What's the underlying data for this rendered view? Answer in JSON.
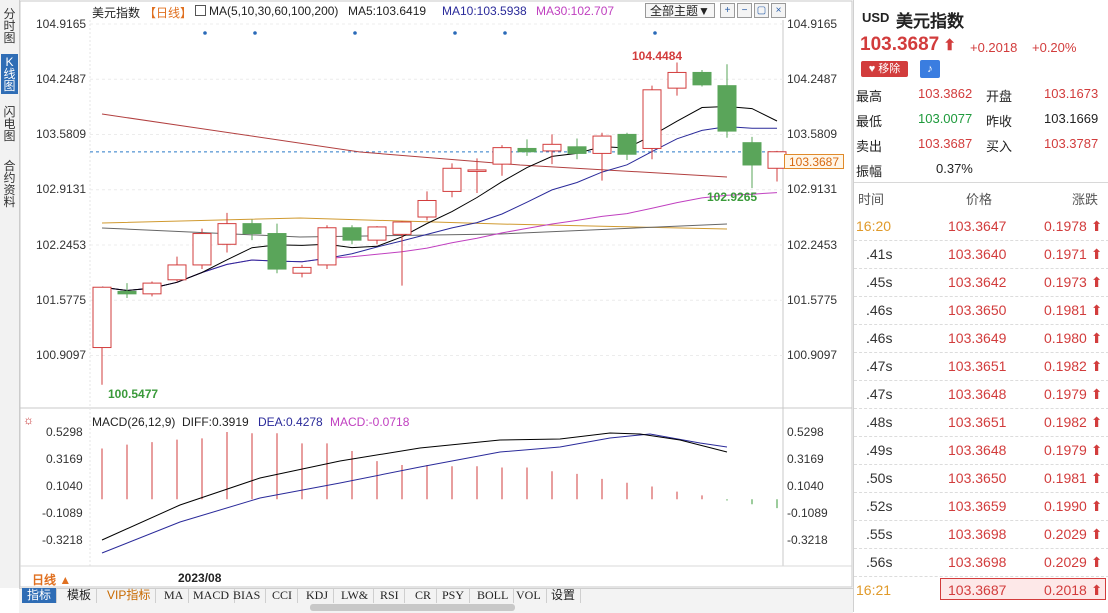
{
  "left_tabs": [
    {
      "label": "分时图",
      "active": false
    },
    {
      "label": "K线图",
      "active": true
    },
    {
      "label": "闪电图",
      "active": false
    },
    {
      "label": "合约资料",
      "active": false
    }
  ],
  "header": {
    "title": "美元指数",
    "period": "【日线】",
    "ma_params": "MA(5,10,30,60,100,200)",
    "ma5": "MA5:103.6419",
    "ma10": "MA10:103.5938",
    "ma30": "MA30:102.707",
    "theme_select": "全部主题▼"
  },
  "price_axis": [
    "104.9165",
    "104.2487",
    "103.5809",
    "102.9131",
    "102.2453",
    "101.5775",
    "100.9097"
  ],
  "current_price_tag": "103.3687",
  "annotations": {
    "high": "104.4484",
    "low": "100.5477",
    "recent_low": "102.9265"
  },
  "macd": {
    "label": "MACD(26,12,9)",
    "diff": "DIFF:0.3919",
    "dea": "DEA:0.4278",
    "macd": "MACD:-0.0718",
    "axis": [
      "0.5298",
      "0.3169",
      "0.1040",
      "-0.1089",
      "-0.3218"
    ]
  },
  "period_button": "日线",
  "date_label": "2023/08",
  "bottom_tabs": [
    "指标",
    "模板",
    "VIP指标",
    "MA",
    "MACD",
    "BIAS",
    "CCI",
    "KDJ",
    "LW&",
    "RSI",
    "CR",
    "PSY",
    "BOLL",
    "VOL",
    "设置"
  ],
  "quote": {
    "code": "USD",
    "name": "美元指数",
    "price": "103.3687",
    "change": "+0.2018",
    "change_pct": "+0.20%",
    "remove_label": "移除",
    "stats": [
      {
        "l1": "最高",
        "v1": "103.3862",
        "l2": "开盘",
        "v2": "103.1673"
      },
      {
        "l1": "最低",
        "v1": "103.0077",
        "l2": "昨收",
        "v2": "103.1669"
      },
      {
        "l1": "卖出",
        "v1": "103.3687",
        "l2": "买入",
        "v2": "103.3787"
      }
    ],
    "amplitude_label": "振幅",
    "amplitude": "0.37%"
  },
  "ticks_header": {
    "time": "时间",
    "price": "价格",
    "change": "涨跌"
  },
  "ticks": [
    {
      "time": "16:20",
      "price": "103.3647",
      "change": "0.1978"
    },
    {
      "time": ".41s",
      "price": "103.3640",
      "change": "0.1971"
    },
    {
      "time": ".45s",
      "price": "103.3642",
      "change": "0.1973"
    },
    {
      "time": ".46s",
      "price": "103.3650",
      "change": "0.1981"
    },
    {
      "time": ".46s",
      "price": "103.3649",
      "change": "0.1980"
    },
    {
      "time": ".47s",
      "price": "103.3651",
      "change": "0.1982"
    },
    {
      "time": ".47s",
      "price": "103.3648",
      "change": "0.1979"
    },
    {
      "time": ".48s",
      "price": "103.3651",
      "change": "0.1982"
    },
    {
      "time": ".49s",
      "price": "103.3648",
      "change": "0.1979"
    },
    {
      "time": ".50s",
      "price": "103.3650",
      "change": "0.1981"
    },
    {
      "time": ".52s",
      "price": "103.3659",
      "change": "0.1990"
    },
    {
      "time": ".55s",
      "price": "103.3698",
      "change": "0.2029"
    },
    {
      "time": ".56s",
      "price": "103.3698",
      "change": "0.2029"
    },
    {
      "time": "16:21",
      "price": "103.3687",
      "change": "0.2018"
    }
  ],
  "colors": {
    "up": "#d23c3c",
    "down": "#5aa55a",
    "ma5": "#000000",
    "ma10": "#2a2a9a",
    "ma30": "#c040c0",
    "accent": "#2f6db5"
  },
  "chart_data": {
    "type": "candlestick",
    "candles": [
      {
        "o": 101.0,
        "c": 101.73,
        "h": 101.73,
        "l": 100.55
      },
      {
        "o": 101.68,
        "c": 101.65,
        "h": 101.78,
        "l": 101.6
      },
      {
        "o": 101.65,
        "c": 101.78,
        "h": 101.8,
        "l": 101.62
      },
      {
        "o": 101.82,
        "c": 102.0,
        "h": 102.1,
        "l": 101.8
      },
      {
        "o": 102.0,
        "c": 102.38,
        "h": 102.44,
        "l": 101.95
      },
      {
        "o": 102.25,
        "c": 102.5,
        "h": 102.63,
        "l": 102.15
      },
      {
        "o": 102.5,
        "c": 102.38,
        "h": 102.55,
        "l": 102.3
      },
      {
        "o": 102.38,
        "c": 101.95,
        "h": 102.5,
        "l": 101.9
      },
      {
        "o": 101.9,
        "c": 101.97,
        "h": 102.0,
        "l": 101.85
      },
      {
        "o": 102.0,
        "c": 102.45,
        "h": 102.48,
        "l": 101.95
      },
      {
        "o": 102.45,
        "c": 102.3,
        "h": 102.48,
        "l": 102.25
      },
      {
        "o": 102.3,
        "c": 102.46,
        "h": 102.47,
        "l": 102.25
      },
      {
        "o": 102.37,
        "c": 102.52,
        "h": 102.53,
        "l": 101.75
      },
      {
        "o": 102.58,
        "c": 102.78,
        "h": 102.89,
        "l": 102.54
      },
      {
        "o": 102.89,
        "c": 103.17,
        "h": 103.23,
        "l": 102.82
      },
      {
        "o": 103.14,
        "c": 103.15,
        "h": 103.29,
        "l": 102.87
      },
      {
        "o": 103.22,
        "c": 103.42,
        "h": 103.45,
        "l": 103.08
      },
      {
        "o": 103.41,
        "c": 103.37,
        "h": 103.52,
        "l": 103.32
      },
      {
        "o": 103.38,
        "c": 103.46,
        "h": 103.58,
        "l": 103.22
      },
      {
        "o": 103.43,
        "c": 103.35,
        "h": 103.53,
        "l": 103.28
      },
      {
        "o": 103.35,
        "c": 103.56,
        "h": 103.6,
        "l": 103.02
      },
      {
        "o": 103.58,
        "c": 103.34,
        "h": 103.6,
        "l": 103.27
      },
      {
        "o": 103.41,
        "c": 104.12,
        "h": 104.17,
        "l": 103.28
      },
      {
        "o": 104.14,
        "c": 104.33,
        "h": 104.45,
        "l": 104.05
      },
      {
        "o": 104.33,
        "c": 104.18,
        "h": 104.36,
        "l": 104.16
      },
      {
        "o": 104.17,
        "c": 103.62,
        "h": 104.43,
        "l": 103.54
      },
      {
        "o": 103.48,
        "c": 103.21,
        "h": 103.55,
        "l": 102.93
      },
      {
        "o": 103.17,
        "c": 103.37,
        "h": 103.38,
        "l": 103.01
      }
    ],
    "macd_bars": [
      0.4,
      0.43,
      0.45,
      0.47,
      0.48,
      0.53,
      0.52,
      0.52,
      0.44,
      0.44,
      0.38,
      0.3,
      0.27,
      0.27,
      0.26,
      0.26,
      0.25,
      0.25,
      0.22,
      0.2,
      0.16,
      0.13,
      0.1,
      0.06,
      0.03,
      -0.01,
      -0.04,
      -0.07
    ]
  }
}
